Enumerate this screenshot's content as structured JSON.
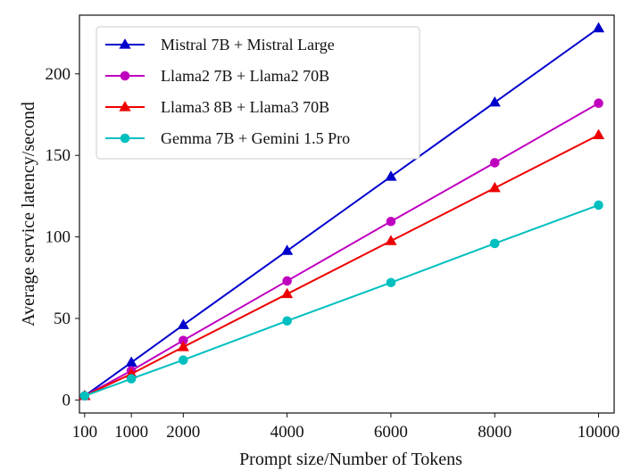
{
  "chart_data": {
    "type": "line",
    "title": "",
    "xlabel": "Prompt size/Number of Tokens",
    "ylabel": "Average service latency/second",
    "x": [
      100,
      1000,
      2000,
      4000,
      6000,
      8000,
      10000
    ],
    "x_tick_labels": [
      "100",
      "1000",
      "2000",
      "4000",
      "6000",
      "8000",
      "10000"
    ],
    "y_ticks": [
      0,
      50,
      100,
      150,
      200
    ],
    "y_tick_labels": [
      "0",
      "50",
      "100",
      "150",
      "200"
    ],
    "xlim": [
      0,
      10300
    ],
    "ylim": [
      -8,
      236
    ],
    "grid": false,
    "legend_position": "top-left",
    "series": [
      {
        "name": "Mistral 7B + Mistral Large",
        "color": "#0000cc",
        "marker": "triangle",
        "values": [
          2.5,
          23,
          46,
          91.5,
          137,
          182.5,
          228
        ]
      },
      {
        "name": "Llama2 7B + Llama2 70B",
        "color": "#bf00bf",
        "marker": "circle",
        "values": [
          2.5,
          18,
          36.5,
          73,
          109.5,
          145.5,
          182
        ]
      },
      {
        "name": "Llama3 8B + Llama3 70B",
        "color": "#ee0000",
        "marker": "triangle",
        "values": [
          2.5,
          16,
          32.5,
          65,
          97.5,
          130,
          162.5
        ]
      },
      {
        "name": "Gemma 7B + Gemini 1.5 Pro",
        "color": "#00bfbf",
        "marker": "circle",
        "values": [
          2.5,
          13,
          24.5,
          48.5,
          72,
          96,
          119.5
        ]
      }
    ]
  }
}
